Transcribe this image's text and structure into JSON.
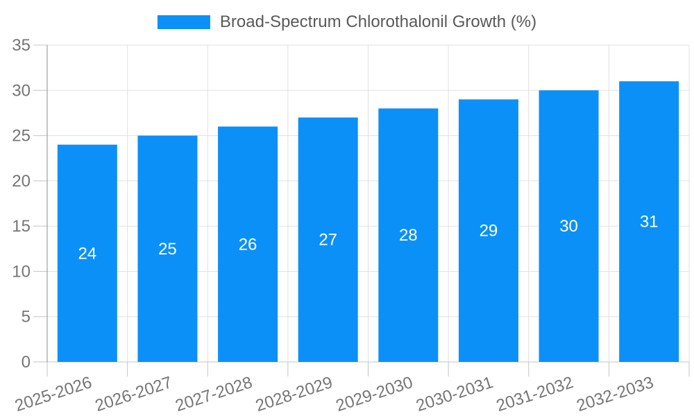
{
  "legend": {
    "label": "Broad-Spectrum Chlorothalonil Growth (%)"
  },
  "colors": {
    "bar": "#0b90f8",
    "grid": "#e0e0e0",
    "tick": "#c4c4c4",
    "axis_y": "#8c8c8c",
    "axis_x": "#c4c4c4",
    "tick_label": "#757575",
    "bar_label": "#ffffff",
    "legend_text": "#595959",
    "background": "#ffffff"
  },
  "chart_data": {
    "type": "bar",
    "title": "Broad-Spectrum Chlorothalonil Growth (%)",
    "categories": [
      "2025-2026",
      "2026-2027",
      "2027-2028",
      "2028-2029",
      "2029-2030",
      "2030-2031",
      "2031-2032",
      "2032-2033"
    ],
    "values": [
      24,
      25,
      26,
      27,
      28,
      29,
      30,
      31
    ],
    "series": [
      {
        "name": "Broad-Spectrum Chlorothalonil Growth (%)",
        "values": [
          24,
          25,
          26,
          27,
          28,
          29,
          30,
          31
        ]
      }
    ],
    "xlabel": "",
    "ylabel": "",
    "ylim": [
      0,
      35
    ],
    "yticks": [
      0,
      5,
      10,
      15,
      20,
      25,
      30,
      35
    ],
    "grid": true,
    "bar_labels": true,
    "legend_position": "top",
    "x_label_rotation_deg": -18
  }
}
